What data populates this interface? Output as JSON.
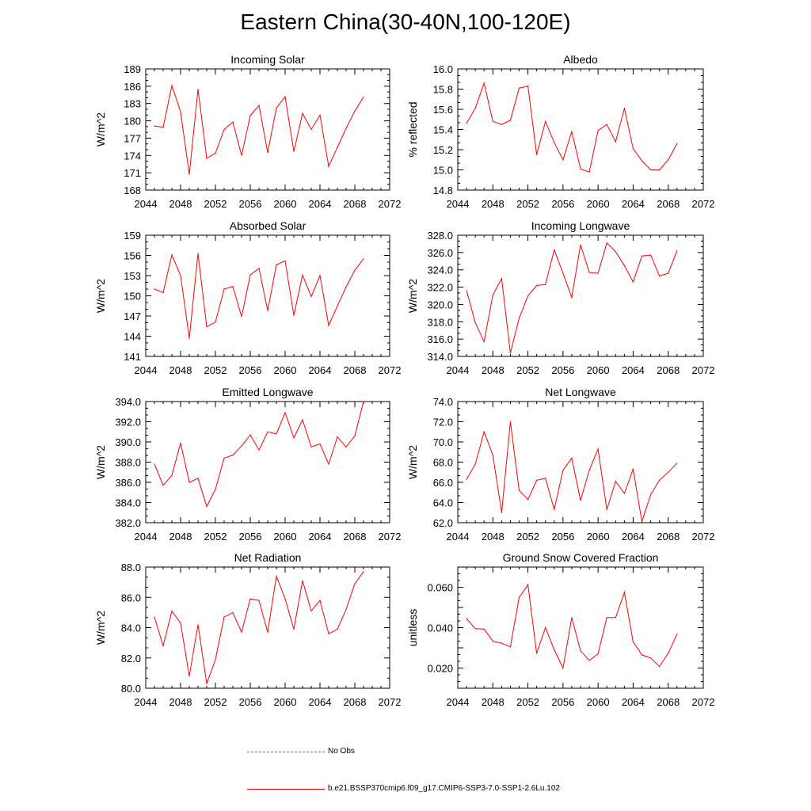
{
  "figure": {
    "title": "Eastern China(30-40N,100-120E)",
    "line_color": "#ff0000",
    "obs_color": "#6b6bc8"
  },
  "legend": {
    "obs_label": "No Obs",
    "model_label": "b.e21.BSSP370cmip6.f09_g17.CMIP6-SSP3-7.0-SSP1-2.6Lu.102"
  },
  "chart_data": [
    {
      "type": "line",
      "title": "Incoming Solar",
      "ylabel": "W/m^2",
      "xlim": [
        2044,
        2072
      ],
      "ylim": [
        168,
        189
      ],
      "xticks": [
        2044,
        2048,
        2052,
        2056,
        2060,
        2064,
        2068,
        2072
      ],
      "yticks": [
        "168",
        "171",
        "174",
        "177",
        "180",
        "183",
        "186",
        "189"
      ],
      "x": [
        2045,
        2046,
        2047,
        2048,
        2049,
        2050,
        2051,
        2052,
        2053,
        2054,
        2055,
        2056,
        2057,
        2058,
        2059,
        2060,
        2061,
        2062,
        2063,
        2064,
        2065,
        2066,
        2067,
        2068,
        2069
      ],
      "series": [
        {
          "name": "b.e21.BSSP370cmip6.f09_g17.CMIP6-SSP3-7.0-SSP1-2.6Lu.102",
          "values": [
            179.1,
            178.9,
            186.1,
            181.6,
            170.7,
            185.5,
            173.5,
            174.4,
            178.5,
            179.8,
            174.0,
            180.9,
            182.7,
            174.5,
            182.2,
            184.2,
            174.7,
            181.3,
            178.5,
            181.0,
            172.1,
            175.4,
            178.7,
            181.7,
            184.1
          ]
        }
      ]
    },
    {
      "type": "line",
      "title": "Albedo",
      "ylabel": "% reflected",
      "xlim": [
        2044,
        2072
      ],
      "ylim": [
        14.8,
        16.0
      ],
      "xticks": [
        2044,
        2048,
        2052,
        2056,
        2060,
        2064,
        2068,
        2072
      ],
      "yticks": [
        "14.8",
        "15.0",
        "15.2",
        "15.4",
        "15.6",
        "15.8",
        "16.0"
      ],
      "x": [
        2045,
        2046,
        2047,
        2048,
        2049,
        2050,
        2051,
        2052,
        2053,
        2054,
        2055,
        2056,
        2057,
        2058,
        2059,
        2060,
        2061,
        2062,
        2063,
        2064,
        2065,
        2066,
        2067,
        2068,
        2069
      ],
      "series": [
        {
          "name": "b.e21.BSSP370cmip6.f09_g17.CMIP6-SSP3-7.0-SSP1-2.6Lu.102",
          "values": [
            15.46,
            15.61,
            15.86,
            15.48,
            15.45,
            15.49,
            15.81,
            15.83,
            15.15,
            15.48,
            15.27,
            15.1,
            15.38,
            15.01,
            14.98,
            15.39,
            15.45,
            15.28,
            15.61,
            15.21,
            15.09,
            15.0,
            15.0,
            15.1,
            15.26
          ]
        }
      ]
    },
    {
      "type": "line",
      "title": "Absorbed Solar",
      "ylabel": "W/m^2",
      "xlim": [
        2044,
        2072
      ],
      "ylim": [
        141,
        159
      ],
      "xticks": [
        2044,
        2048,
        2052,
        2056,
        2060,
        2064,
        2068,
        2072
      ],
      "yticks": [
        "141",
        "144",
        "147",
        "150",
        "153",
        "156",
        "159"
      ],
      "x": [
        2045,
        2046,
        2047,
        2048,
        2049,
        2050,
        2051,
        2052,
        2053,
        2054,
        2055,
        2056,
        2057,
        2058,
        2059,
        2060,
        2061,
        2062,
        2063,
        2064,
        2065,
        2066,
        2067,
        2068,
        2069
      ],
      "series": [
        {
          "name": "b.e21.BSSP370cmip6.f09_g17.CMIP6-SSP3-7.0-SSP1-2.6Lu.102",
          "values": [
            151.0,
            150.5,
            156.1,
            153.0,
            143.7,
            156.3,
            145.4,
            146.1,
            151.0,
            151.4,
            146.9,
            153.1,
            154.1,
            147.8,
            154.6,
            155.2,
            147.1,
            153.1,
            149.9,
            153.0,
            145.6,
            148.5,
            151.3,
            153.8,
            155.5
          ]
        }
      ]
    },
    {
      "type": "line",
      "title": "Incoming Longwave",
      "ylabel": "W/m^2",
      "xlim": [
        2044,
        2072
      ],
      "ylim": [
        314.0,
        328.0
      ],
      "xticks": [
        2044,
        2048,
        2052,
        2056,
        2060,
        2064,
        2068,
        2072
      ],
      "yticks": [
        "314.0",
        "316.0",
        "318.0",
        "320.0",
        "322.0",
        "324.0",
        "326.0",
        "328.0"
      ],
      "x": [
        2045,
        2046,
        2047,
        2048,
        2049,
        2050,
        2051,
        2052,
        2053,
        2054,
        2055,
        2056,
        2057,
        2058,
        2059,
        2060,
        2061,
        2062,
        2063,
        2064,
        2065,
        2066,
        2067,
        2068,
        2069
      ],
      "series": [
        {
          "name": "b.e21.BSSP370cmip6.f09_g17.CMIP6-SSP3-7.0-SSP1-2.6Lu.102",
          "values": [
            321.6,
            317.9,
            315.7,
            321.1,
            323.0,
            314.4,
            318.4,
            321.0,
            322.2,
            322.3,
            326.3,
            323.6,
            320.8,
            326.9,
            323.7,
            323.6,
            327.1,
            326.1,
            324.5,
            322.6,
            325.6,
            325.7,
            323.3,
            323.6,
            326.2
          ]
        }
      ]
    },
    {
      "type": "line",
      "title": "Emitted Longwave",
      "ylabel": "W/m^2",
      "xlim": [
        2044,
        2072
      ],
      "ylim": [
        382.0,
        394.0
      ],
      "xticks": [
        2044,
        2048,
        2052,
        2056,
        2060,
        2064,
        2068,
        2072
      ],
      "yticks": [
        "382.0",
        "384.0",
        "386.0",
        "388.0",
        "390.0",
        "392.0",
        "394.0"
      ],
      "x": [
        2045,
        2046,
        2047,
        2048,
        2049,
        2050,
        2051,
        2052,
        2053,
        2054,
        2055,
        2056,
        2057,
        2058,
        2059,
        2060,
        2061,
        2062,
        2063,
        2064,
        2065,
        2066,
        2067,
        2068,
        2069
      ],
      "series": [
        {
          "name": "b.e21.BSSP370cmip6.f09_g17.CMIP6-SSP3-7.0-SSP1-2.6Lu.102",
          "values": [
            387.8,
            385.7,
            386.7,
            389.9,
            386.0,
            386.4,
            383.6,
            385.3,
            388.4,
            388.7,
            389.6,
            390.7,
            389.2,
            391.0,
            390.8,
            392.9,
            390.4,
            392.2,
            389.5,
            389.8,
            387.8,
            390.5,
            389.5,
            390.6,
            394.0
          ]
        }
      ]
    },
    {
      "type": "line",
      "title": "Net Longwave",
      "ylabel": "W/m^2",
      "xlim": [
        2044,
        2072
      ],
      "ylim": [
        62.0,
        74.0
      ],
      "xticks": [
        2044,
        2048,
        2052,
        2056,
        2060,
        2064,
        2068,
        2072
      ],
      "yticks": [
        "62.0",
        "64.0",
        "66.0",
        "68.0",
        "70.0",
        "72.0",
        "74.0"
      ],
      "x": [
        2045,
        2046,
        2047,
        2048,
        2049,
        2050,
        2051,
        2052,
        2053,
        2054,
        2055,
        2056,
        2057,
        2058,
        2059,
        2060,
        2061,
        2062,
        2063,
        2064,
        2065,
        2066,
        2067,
        2068,
        2069
      ],
      "series": [
        {
          "name": "b.e21.BSSP370cmip6.f09_g17.CMIP6-SSP3-7.0-SSP1-2.6Lu.102",
          "values": [
            66.3,
            67.8,
            71.0,
            68.7,
            63.0,
            72.0,
            65.2,
            64.3,
            66.2,
            66.4,
            63.3,
            67.2,
            68.4,
            64.2,
            67.2,
            69.3,
            63.3,
            66.1,
            64.9,
            67.3,
            62.1,
            64.8,
            66.2,
            67.0,
            67.9
          ]
        }
      ]
    },
    {
      "type": "line",
      "title": "Net Radiation",
      "ylabel": "W/m^2",
      "xlim": [
        2044,
        2072
      ],
      "ylim": [
        80.0,
        88.0
      ],
      "xticks": [
        2044,
        2048,
        2052,
        2056,
        2060,
        2064,
        2068,
        2072
      ],
      "yticks": [
        "80.0",
        "82.0",
        "84.0",
        "86.0",
        "88.0"
      ],
      "x": [
        2045,
        2046,
        2047,
        2048,
        2049,
        2050,
        2051,
        2052,
        2053,
        2054,
        2055,
        2056,
        2057,
        2058,
        2059,
        2060,
        2061,
        2062,
        2063,
        2064,
        2065,
        2066,
        2067,
        2068,
        2069
      ],
      "series": [
        {
          "name": "b.e21.BSSP370cmip6.f09_g17.CMIP6-SSP3-7.0-SSP1-2.6Lu.102",
          "values": [
            84.7,
            82.8,
            85.1,
            84.3,
            80.8,
            84.2,
            80.3,
            81.9,
            84.7,
            85.0,
            83.7,
            85.9,
            85.8,
            83.7,
            87.4,
            85.9,
            83.9,
            87.1,
            85.1,
            85.8,
            83.6,
            83.9,
            85.2,
            86.9,
            87.7
          ]
        }
      ]
    },
    {
      "type": "line",
      "title": "Ground Snow Covered Fraction",
      "ylabel": "unitless",
      "xlim": [
        2044,
        2072
      ],
      "ylim": [
        0.01,
        0.07
      ],
      "xticks": [
        2044,
        2048,
        2052,
        2056,
        2060,
        2064,
        2068,
        2072
      ],
      "yticks": [
        "",
        "0.020",
        "",
        "0.040",
        "",
        "0.060",
        ""
      ],
      "x": [
        2045,
        2046,
        2047,
        2048,
        2049,
        2050,
        2051,
        2052,
        2053,
        2054,
        2055,
        2056,
        2057,
        2058,
        2059,
        2060,
        2061,
        2062,
        2063,
        2064,
        2065,
        2066,
        2067,
        2068,
        2069
      ],
      "series": [
        {
          "name": "b.e21.BSSP370cmip6.f09_g17.CMIP6-SSP3-7.0-SSP1-2.6Lu.102",
          "values": [
            0.0445,
            0.0395,
            0.0393,
            0.0333,
            0.0323,
            0.0305,
            0.055,
            0.0613,
            0.0273,
            0.04,
            0.029,
            0.02,
            0.045,
            0.0285,
            0.0238,
            0.027,
            0.045,
            0.045,
            0.0575,
            0.033,
            0.0265,
            0.025,
            0.0208,
            0.0273,
            0.0368
          ]
        }
      ]
    }
  ]
}
